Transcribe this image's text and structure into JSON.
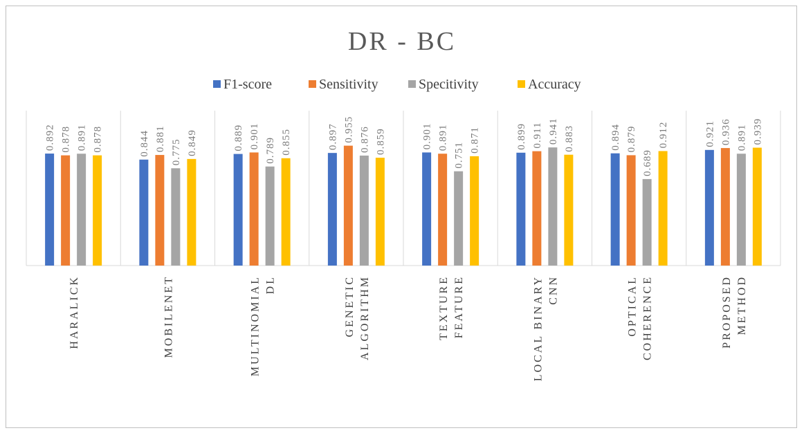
{
  "chart_data": {
    "type": "bar",
    "title": "DR - BC",
    "xlabel": "",
    "ylabel": "",
    "legend_position": "top",
    "grid": false,
    "ylim": [
      0,
      1.3
    ],
    "categories": [
      [
        "HARALICK"
      ],
      [
        "MOBILENET"
      ],
      [
        "MULTINOMIAL",
        "DL"
      ],
      [
        "GENETIC",
        "ALGORITHM"
      ],
      [
        "TEXTURE",
        "FEATURE"
      ],
      [
        "LOCAL BINARY",
        "CNN"
      ],
      [
        "OPTICAL",
        "COHERENCE"
      ],
      [
        "PROPOSED",
        "METHOD"
      ]
    ],
    "series": [
      {
        "name": "F1-score",
        "color": "#4472c4",
        "values": [
          0.892,
          0.844,
          0.889,
          0.897,
          0.901,
          0.899,
          0.894,
          0.921
        ]
      },
      {
        "name": "Sensitivity",
        "color": "#ed7d31",
        "values": [
          0.878,
          0.881,
          0.901,
          0.955,
          0.891,
          0.911,
          0.879,
          0.936
        ]
      },
      {
        "name": "Specitivity",
        "color": "#a5a5a5",
        "values": [
          0.891,
          0.775,
          0.789,
          0.876,
          0.751,
          0.941,
          0.689,
          0.891
        ]
      },
      {
        "name": "Accuracy",
        "color": "#ffc000",
        "values": [
          0.878,
          0.849,
          0.855,
          0.859,
          0.871,
          0.883,
          0.912,
          0.939
        ]
      }
    ]
  }
}
